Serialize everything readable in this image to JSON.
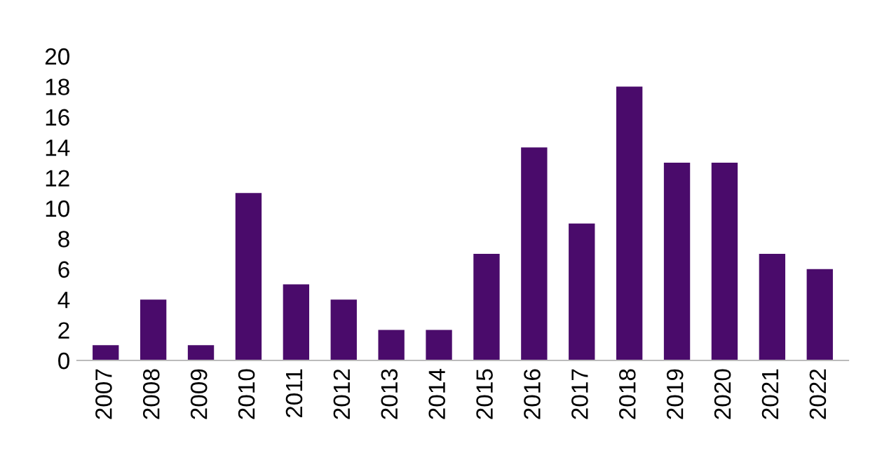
{
  "chart_data": {
    "type": "bar",
    "categories": [
      "2007",
      "2008",
      "2009",
      "2010",
      "2011",
      "2012",
      "2013",
      "2014",
      "2015",
      "2016",
      "2017",
      "2018",
      "2019",
      "2020",
      "2021",
      "2022"
    ],
    "values": [
      1,
      4,
      1,
      11,
      5,
      4,
      2,
      2,
      7,
      14,
      9,
      18,
      13,
      13,
      7,
      6
    ],
    "color": "#4a0b6b",
    "ylim": [
      0,
      20
    ],
    "yticks": [
      0,
      2,
      4,
      6,
      8,
      10,
      12,
      14,
      16,
      18,
      20
    ],
    "grid": false
  }
}
